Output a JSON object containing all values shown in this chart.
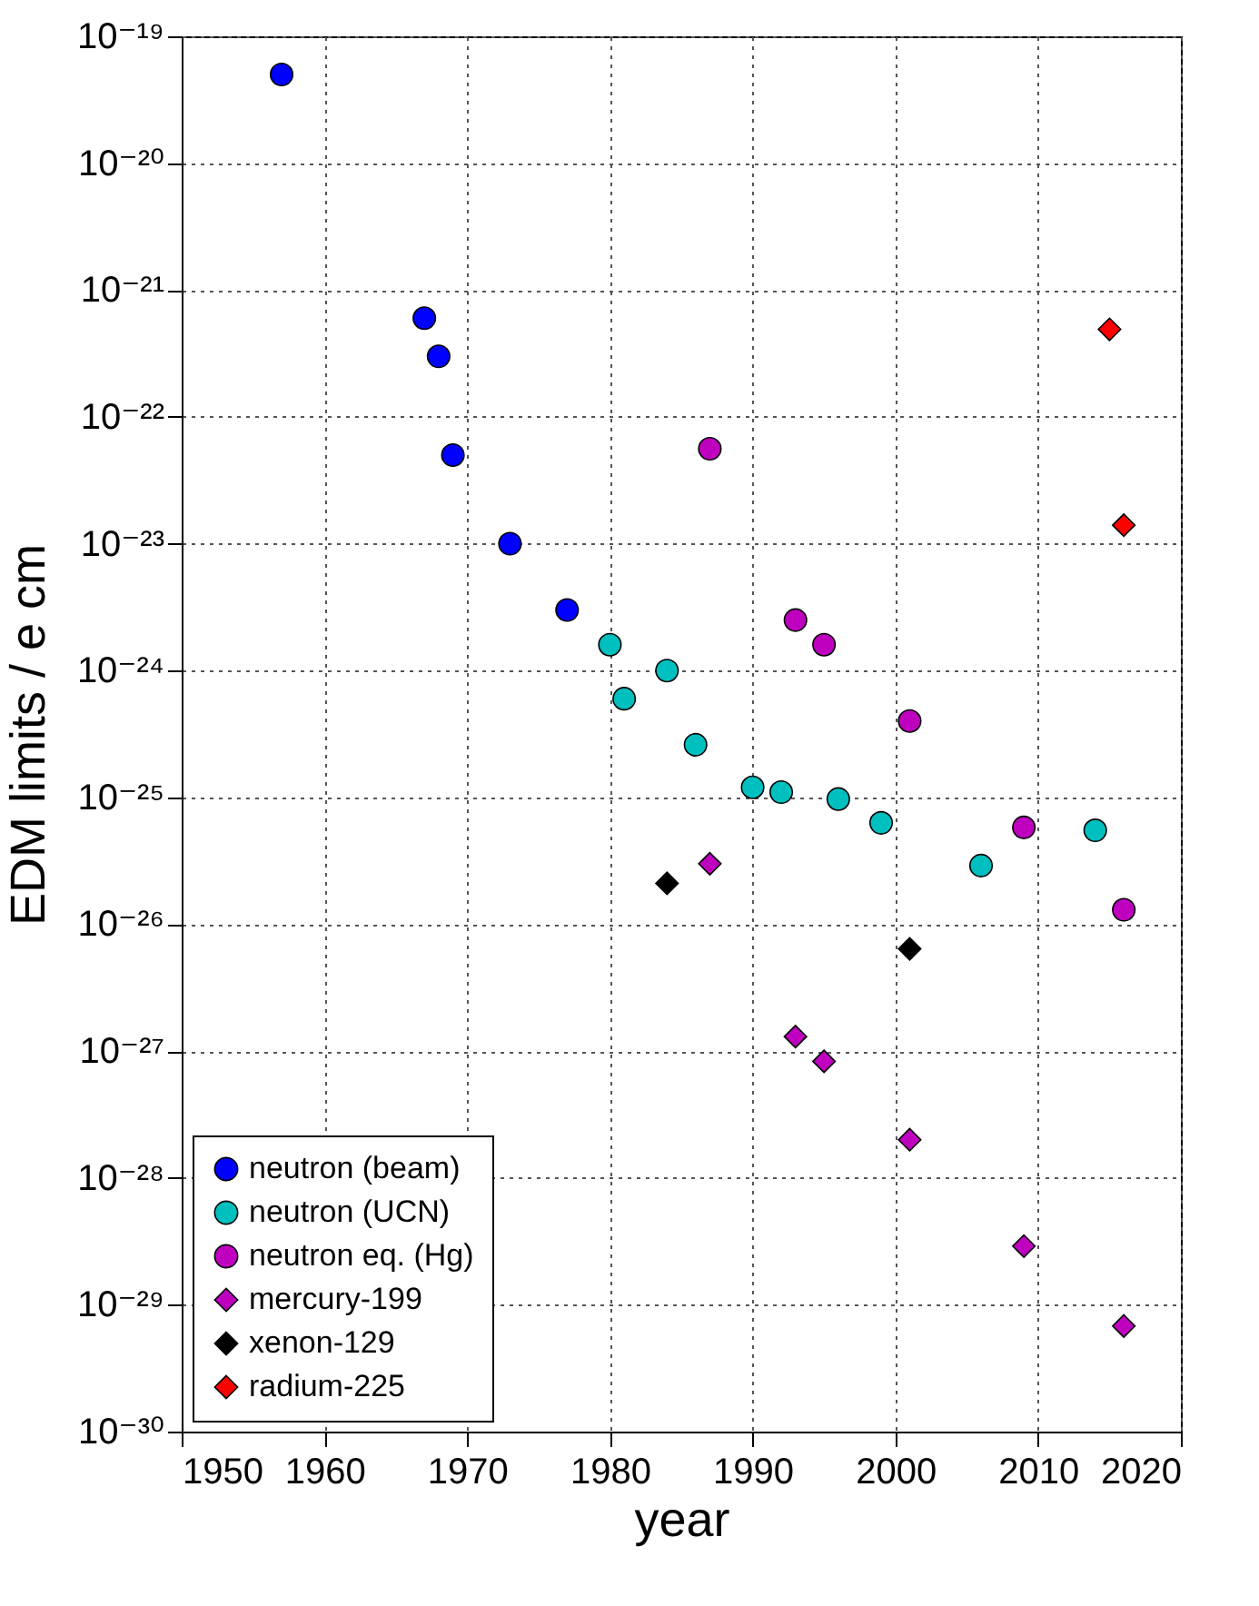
{
  "chart_data": {
    "type": "scatter",
    "xlabel": "year",
    "ylabel": "EDM limits / e cm",
    "log": "y",
    "grid": true,
    "legend": "bottom left",
    "xlim": [
      1950,
      2020
    ],
    "xticks": [
      1950,
      1960,
      1970,
      1980,
      1990,
      2000,
      2010,
      2020
    ],
    "ylim": [
      1e-30,
      1e-19
    ],
    "yticks": [
      {
        "value": 1e-30,
        "label": "10⁻³⁰"
      },
      {
        "value": 1e-29,
        "label": "10⁻²⁹"
      },
      {
        "value": 1e-28,
        "label": "10⁻²⁸"
      },
      {
        "value": 1e-27,
        "label": "10⁻²⁷"
      },
      {
        "value": 1e-26,
        "label": "10⁻²⁶"
      },
      {
        "value": 1e-25,
        "label": "10⁻²⁵"
      },
      {
        "value": 1e-24,
        "label": "10⁻²⁴"
      },
      {
        "value": 1e-23,
        "label": "10⁻²³"
      },
      {
        "value": 1e-22,
        "label": "10⁻²²"
      },
      {
        "value": 1e-21,
        "label": "10⁻²¹"
      },
      {
        "value": 1e-20,
        "label": "10⁻²⁰"
      },
      {
        "value": 1e-19,
        "label": "10⁻¹⁹"
      }
    ],
    "series": [
      {
        "name": "neutron (beam)",
        "color": "#0000ff",
        "marker": "circle",
        "x": [
          1957,
          1967,
          1968,
          1969,
          1973,
          1977
        ],
        "values": [
          5e-20,
          6e-22,
          3e-22,
          5e-23,
          1e-23,
          3e-24
        ]
      },
      {
        "name": "neutron (UCN)",
        "color": "#00bfbf",
        "marker": "circle",
        "x": [
          1980,
          1981,
          1984,
          1986,
          1990,
          1992,
          1996,
          1999,
          2006,
          2014
        ],
        "values": [
          1.6e-24,
          6e-25,
          1e-24,
          2.6e-25,
          1.2e-25,
          1.1e-25,
          9.7e-26,
          6.3e-26,
          2.9e-26,
          5.5e-26
        ]
      },
      {
        "name": "neutron eq. (Hg)",
        "color": "#bf00bf",
        "marker": "circle",
        "x": [
          1987,
          1993,
          1995,
          2001,
          2009,
          2016
        ],
        "values": [
          5.6e-23,
          2.5e-24,
          1.6e-24,
          4e-25,
          5.8e-26,
          1.3e-26
        ]
      },
      {
        "name": "mercury-199",
        "color": "#bf00bf",
        "marker": "diamond",
        "x": [
          1987,
          1993,
          1995,
          2001,
          2009,
          2016
        ],
        "values": [
          3e-26,
          1.3e-27,
          8.3e-28,
          2e-28,
          2.9e-29,
          6.8e-30
        ]
      },
      {
        "name": "xenon-129",
        "color": "#000000",
        "marker": "diamond",
        "x": [
          1984,
          2001
        ],
        "values": [
          2.1e-26,
          6.4e-27
        ]
      },
      {
        "name": "radium-225",
        "color": "#ff0000",
        "marker": "diamond",
        "x": [
          2015,
          2016
        ],
        "values": [
          4.9e-22,
          1.4e-23
        ]
      }
    ]
  }
}
